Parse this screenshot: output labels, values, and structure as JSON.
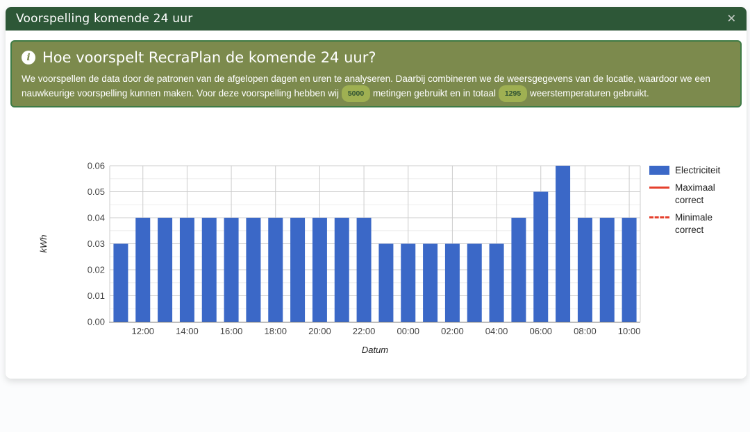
{
  "modal": {
    "title": "Voorspelling komende 24 uur",
    "close_label": "✕"
  },
  "info_box": {
    "icon": "info-circle-icon",
    "icon_glyph": "i",
    "heading": "Hoe voorspelt RecraPlan de komende 24 uur?",
    "text_before_first_badge": "We voorspellen de data door de patronen van de afgelopen dagen en uren te analyseren. Daarbij combineren we de weersgegevens van de locatie, waardoor we een nauwkeurige voorspelling kunnen maken. Voor deze voorspelling hebben wij",
    "measurements_count": "5000",
    "text_between_badges": "metingen gebruikt en in totaal",
    "temperatures_count": "1295",
    "text_after_second_badge": "weerstemperaturen gebruikt."
  },
  "chart_data": {
    "type": "bar",
    "title": "",
    "xlabel": "Datum",
    "ylabel": "kWh",
    "ylim": [
      0,
      0.06
    ],
    "ytick_step": 0.01,
    "ytick_minor_step": 0.005,
    "grid": true,
    "legend_position": "right",
    "categories": [
      "11:00",
      "12:00",
      "13:00",
      "14:00",
      "15:00",
      "16:00",
      "17:00",
      "18:00",
      "19:00",
      "20:00",
      "21:00",
      "22:00",
      "23:00",
      "00:00",
      "01:00",
      "02:00",
      "03:00",
      "04:00",
      "05:00",
      "06:00",
      "07:00",
      "08:00",
      "09:00",
      "10:00"
    ],
    "x_tick_labels": [
      "12:00",
      "14:00",
      "16:00",
      "18:00",
      "20:00",
      "22:00",
      "00:00",
      "02:00",
      "04:00",
      "06:00",
      "08:00",
      "10:00"
    ],
    "series": [
      {
        "name": "Electriciteit",
        "type": "bar",
        "color": "#3b68c7",
        "values": [
          0.03,
          0.04,
          0.04,
          0.04,
          0.04,
          0.04,
          0.04,
          0.04,
          0.04,
          0.04,
          0.04,
          0.04,
          0.03,
          0.03,
          0.03,
          0.03,
          0.03,
          0.03,
          0.04,
          0.05,
          0.06,
          0.04,
          0.04,
          0.04
        ]
      }
    ],
    "legend": [
      {
        "label": "Electriciteit",
        "swatch": "rect",
        "color": "#3b68c7"
      },
      {
        "label": "Maximaal correct",
        "swatch": "line",
        "color": "#e5402d"
      },
      {
        "label": "Minimale correct",
        "swatch": "dashed-line",
        "color": "#e5402d"
      }
    ]
  },
  "colors": {
    "header_bg": "#2d5737",
    "info_box_bg": "#7c8a4d",
    "info_box_border": "#3e7b46",
    "badge_bg": "#9fb052",
    "badge_text": "#2f5233",
    "bar_blue": "#3b68c7",
    "legend_red": "#e5402d",
    "gridline_major": "#cccccc",
    "gridline_minor": "#ededed",
    "axis_baseline": "#616161"
  }
}
